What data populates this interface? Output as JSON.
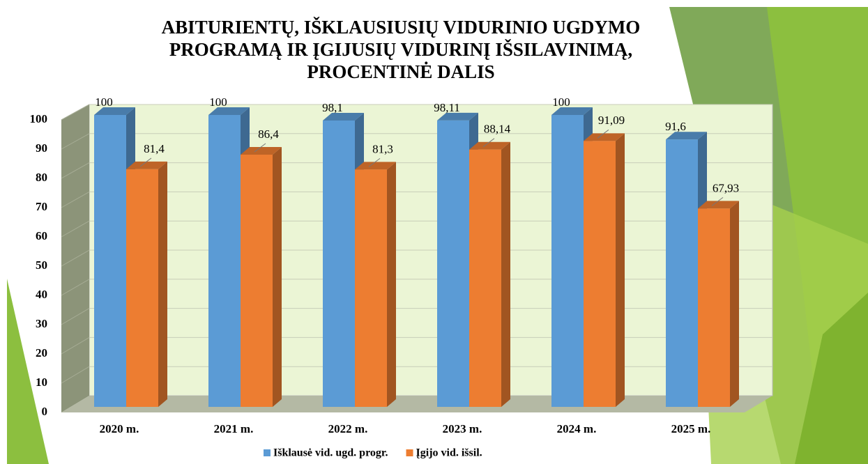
{
  "chart_data": {
    "type": "bar3d",
    "title": [
      "ABITURIENTŲ, IŠKLAUSIUSIŲ VIDURINIO UGDYMO",
      "PROGRAMĄ IR ĮGIJUSIŲ VIDURINĮ IŠSILAVINIMĄ,",
      "PROCENTINĖ DALIS"
    ],
    "categories": [
      "2020 m.",
      "2021 m.",
      "2022 m.",
      "2023 m.",
      "2024 m.",
      "2025 m."
    ],
    "series": [
      {
        "name": "Išklausė vid. ugd. progr.",
        "color": "#5b9bd5",
        "values": [
          100,
          100,
          98.1,
          98.11,
          100,
          91.6
        ],
        "value_labels": [
          "100",
          "100",
          "98,1",
          "98,11",
          "100",
          "91,6"
        ]
      },
      {
        "name": "Įgijo vid. išsil.",
        "color": "#ed7d31",
        "values": [
          81.4,
          86.4,
          81.3,
          88.14,
          91.09,
          67.93
        ],
        "value_labels": [
          "81,4",
          "86,4",
          "81,3",
          "88,14",
          "91,09",
          "67,93"
        ]
      }
    ],
    "ylim": [
      0,
      100
    ],
    "yticks": [
      0,
      10,
      20,
      30,
      40,
      50,
      60,
      70,
      80,
      90,
      100
    ],
    "grid": true,
    "legend": "bottom"
  }
}
